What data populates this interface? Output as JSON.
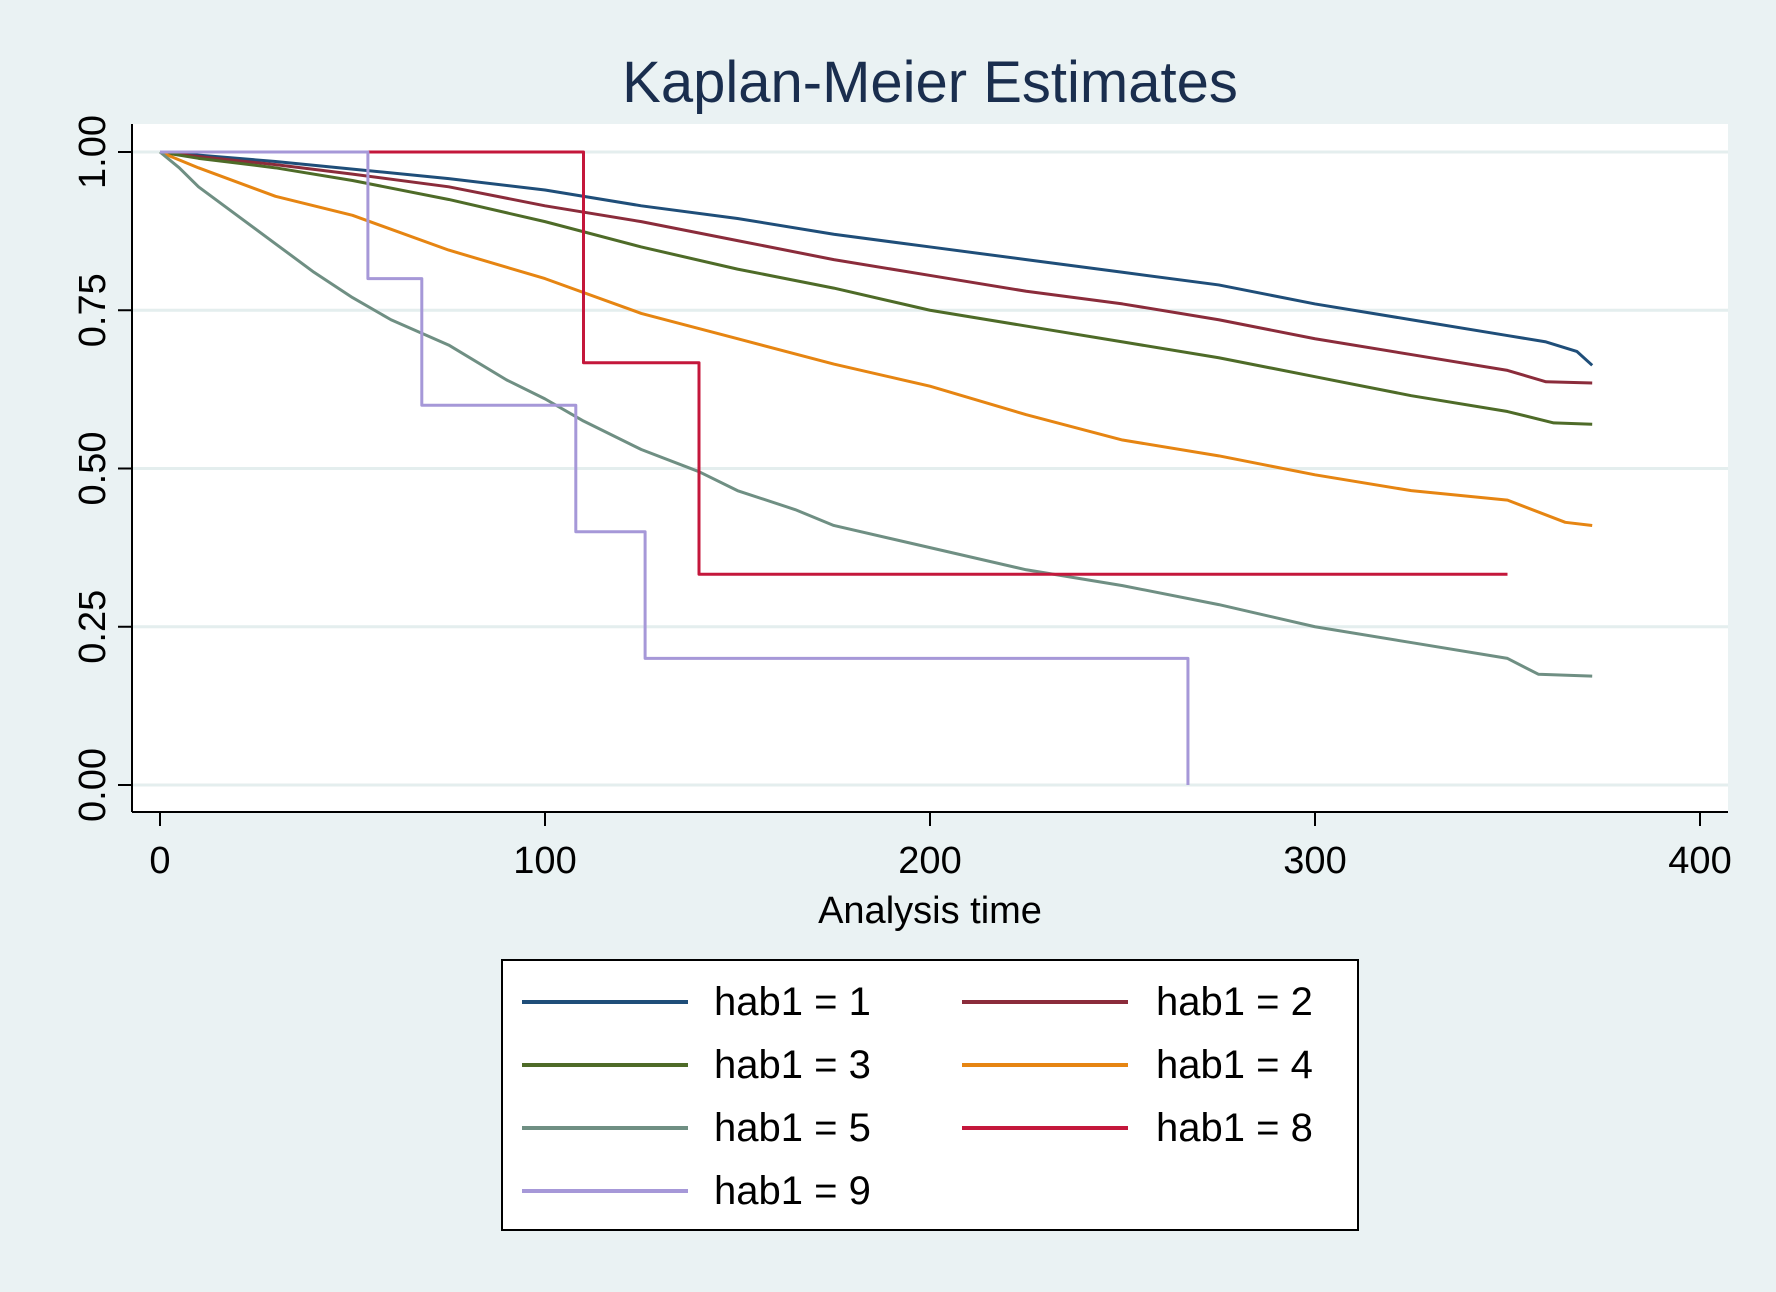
{
  "chart_data": {
    "type": "line",
    "title": "Kaplan-Meier Estimates",
    "xlabel": "Analysis time",
    "ylabel": "",
    "xlim": [
      0,
      400
    ],
    "ylim": [
      0,
      1
    ],
    "xticks": [
      0,
      100,
      200,
      300,
      400
    ],
    "xtick_labels": [
      "0",
      "100",
      "200",
      "300",
      "400"
    ],
    "yticks": [
      0,
      0.25,
      0.5,
      0.75,
      1
    ],
    "ytick_labels": [
      "0.00",
      "0.25",
      "0.50",
      "0.75",
      "1.00"
    ],
    "grid": "horizontal",
    "legend_position": "bottom",
    "series": [
      {
        "name": "hab1 = 1",
        "color": "#1f4e79",
        "step": false,
        "x": [
          0,
          10,
          30,
          50,
          75,
          100,
          125,
          150,
          175,
          200,
          225,
          250,
          275,
          300,
          325,
          350,
          360,
          368,
          372
        ],
        "y": [
          1.0,
          0.995,
          0.985,
          0.973,
          0.958,
          0.94,
          0.915,
          0.895,
          0.87,
          0.85,
          0.83,
          0.81,
          0.79,
          0.76,
          0.735,
          0.71,
          0.7,
          0.685,
          0.663
        ]
      },
      {
        "name": "hab1 = 2",
        "color": "#8b2c3b",
        "step": false,
        "x": [
          0,
          10,
          30,
          50,
          75,
          100,
          125,
          150,
          175,
          200,
          225,
          250,
          275,
          300,
          325,
          350,
          360,
          372
        ],
        "y": [
          1.0,
          0.993,
          0.98,
          0.965,
          0.945,
          0.915,
          0.89,
          0.86,
          0.83,
          0.805,
          0.78,
          0.76,
          0.735,
          0.705,
          0.68,
          0.655,
          0.637,
          0.635
        ]
      },
      {
        "name": "hab1 = 3",
        "color": "#4e6b28",
        "step": false,
        "x": [
          0,
          10,
          30,
          50,
          75,
          100,
          125,
          150,
          175,
          200,
          225,
          250,
          275,
          300,
          325,
          350,
          362,
          372
        ],
        "y": [
          1.0,
          0.99,
          0.975,
          0.955,
          0.925,
          0.89,
          0.85,
          0.815,
          0.785,
          0.75,
          0.725,
          0.7,
          0.675,
          0.645,
          0.615,
          0.59,
          0.572,
          0.57
        ]
      },
      {
        "name": "hab1 = 4",
        "color": "#e68512",
        "step": false,
        "x": [
          0,
          10,
          30,
          50,
          75,
          100,
          125,
          150,
          175,
          200,
          225,
          250,
          275,
          300,
          325,
          350,
          365,
          372
        ],
        "y": [
          1.0,
          0.975,
          0.93,
          0.9,
          0.845,
          0.8,
          0.745,
          0.705,
          0.665,
          0.63,
          0.585,
          0.545,
          0.52,
          0.49,
          0.465,
          0.45,
          0.415,
          0.41
        ]
      },
      {
        "name": "hab1 = 5",
        "color": "#6f8f83",
        "step": false,
        "x": [
          0,
          5,
          10,
          20,
          30,
          40,
          50,
          60,
          75,
          90,
          100,
          110,
          125,
          140,
          150,
          165,
          175,
          200,
          225,
          250,
          275,
          300,
          325,
          350,
          358,
          372
        ],
        "y": [
          1.0,
          0.975,
          0.945,
          0.9,
          0.855,
          0.81,
          0.77,
          0.735,
          0.695,
          0.64,
          0.61,
          0.575,
          0.53,
          0.495,
          0.465,
          0.435,
          0.41,
          0.375,
          0.34,
          0.315,
          0.285,
          0.25,
          0.225,
          0.2,
          0.175,
          0.172
        ]
      },
      {
        "name": "hab1 = 8",
        "color": "#c4173b",
        "step": true,
        "x": [
          0,
          110,
          140,
          350
        ],
        "y": [
          1.0,
          0.667,
          0.333,
          0.333
        ]
      },
      {
        "name": "hab1 = 9",
        "color": "#a698d8",
        "step": true,
        "x": [
          0,
          54,
          68,
          108,
          126,
          267,
          267
        ],
        "y": [
          1.0,
          0.8,
          0.6,
          0.4,
          0.2,
          0.2,
          0.0
        ]
      }
    ]
  }
}
